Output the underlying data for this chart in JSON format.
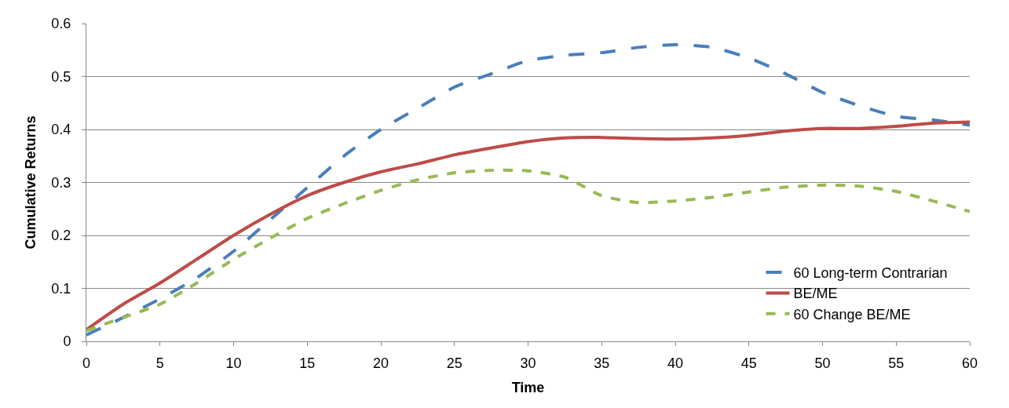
{
  "chart_data": {
    "type": "line",
    "xlabel": "Time",
    "ylabel": "Cumulative Returns",
    "xlim": [
      0,
      60
    ],
    "xticks": [
      0,
      5,
      10,
      15,
      20,
      25,
      30,
      35,
      40,
      45,
      50,
      55,
      60
    ],
    "ylim": [
      0,
      0.6
    ],
    "yticks": [
      0,
      0.1,
      0.2,
      0.3,
      0.4,
      0.5,
      0.6
    ],
    "x": [
      0,
      2.5,
      5,
      7.5,
      10,
      12.5,
      15,
      17.5,
      20,
      22.5,
      25,
      27.5,
      30,
      32.5,
      35,
      37.5,
      40,
      42.5,
      45,
      47.5,
      50,
      52.5,
      55,
      57.5,
      60
    ],
    "grid": "y",
    "legend": "bottom right",
    "marker": "none",
    "series": [
      {
        "name": "60 Long-term Contrarian",
        "color": "#4a7ebb",
        "line_style": "dashed",
        "values": [
          0.012,
          0.045,
          0.08,
          0.12,
          0.17,
          0.23,
          0.29,
          0.35,
          0.4,
          0.44,
          0.48,
          0.505,
          0.53,
          0.54,
          0.545,
          0.555,
          0.56,
          0.555,
          0.535,
          0.505,
          0.47,
          0.445,
          0.425,
          0.418,
          0.408
        ]
      },
      {
        "name": "BE/ME",
        "color": "#be4b48",
        "line_style": "solid",
        "values": [
          0.022,
          0.07,
          0.11,
          0.155,
          0.2,
          0.24,
          0.275,
          0.3,
          0.32,
          0.335,
          0.352,
          0.365,
          0.377,
          0.384,
          0.385,
          0.383,
          0.382,
          0.384,
          0.389,
          0.397,
          0.402,
          0.402,
          0.406,
          0.412,
          0.414
        ]
      },
      {
        "name": "60 Change BE/ME",
        "color": "#98b954",
        "line_style": "dotted",
        "values": [
          0.02,
          0.045,
          0.07,
          0.11,
          0.155,
          0.195,
          0.232,
          0.26,
          0.285,
          0.305,
          0.318,
          0.323,
          0.322,
          0.31,
          0.275,
          0.262,
          0.265,
          0.272,
          0.282,
          0.291,
          0.295,
          0.293,
          0.283,
          0.265,
          0.245
        ]
      }
    ]
  }
}
